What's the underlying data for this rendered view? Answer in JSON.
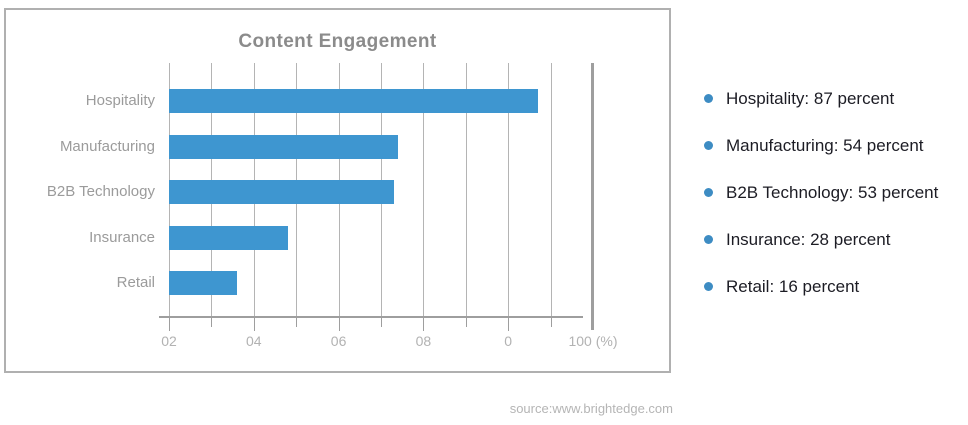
{
  "chart_data": {
    "type": "bar",
    "orientation": "horizontal",
    "title": "Content Engagement",
    "categories": [
      "Hospitality",
      "Manufacturing",
      "B2B Technology",
      "Insurance",
      "Retail"
    ],
    "values": [
      87,
      54,
      53,
      28,
      16
    ],
    "unit": "percent",
    "xlim": [
      0,
      100
    ],
    "gridline_step": 10,
    "x_tick_labels": [
      "02",
      "04",
      "06",
      "08",
      "0",
      "100 (%)"
    ],
    "grid": true,
    "legend_position": "right"
  },
  "legend": {
    "items": [
      "Hospitality: 87 percent",
      "Manufacturing: 54 percent",
      "B2B Technology: 53 percent",
      "Insurance: 28 percent",
      "Retail: 16 percent"
    ]
  },
  "source": "source:www.brightedge.com",
  "colors": {
    "bar": "#3e96d0",
    "bullet": "#3d8cc3",
    "title_text": "#8b8b8b",
    "category_text": "#9b9b9b",
    "tick_text": "#b2b2b2",
    "gridline": "#b4b4b4",
    "axis": "#9e9e9e",
    "legend_text": "#1c1c24",
    "border": "#b0b0b0",
    "source_text": "#b5b5b5"
  }
}
